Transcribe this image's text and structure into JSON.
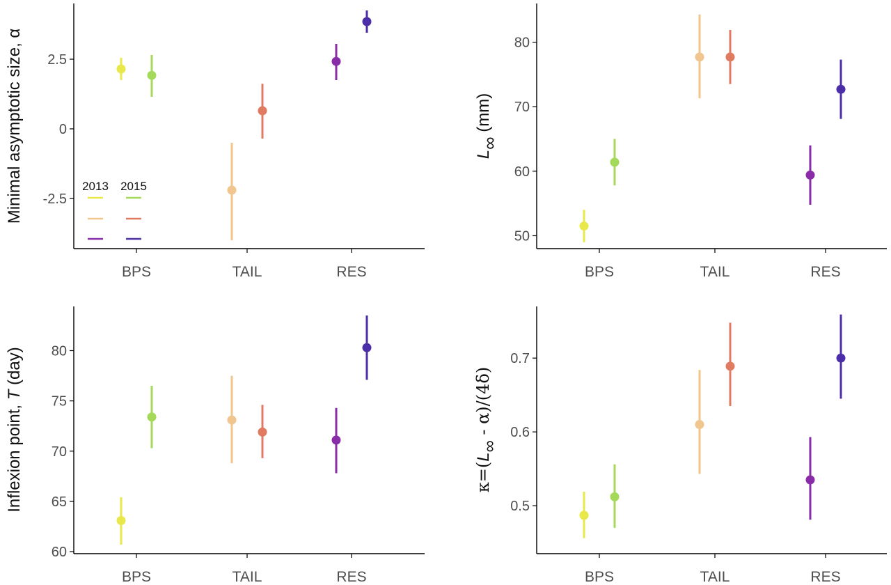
{
  "colors": {
    "BPS": {
      "2013": "#e8e84a",
      "2015": "#a5d95a"
    },
    "TAIL": {
      "2013": "#f0c58e",
      "2015": "#e07a60"
    },
    "RES": {
      "2013": "#8a2ba8",
      "2015": "#4b2ea8"
    }
  },
  "legend": {
    "headers": [
      "2013",
      "2015"
    ]
  },
  "chart_data": [
    {
      "type": "scatter",
      "panel": "top-left",
      "title": "",
      "xlabel": "",
      "ylabel": "Minimal asymptotic size, α",
      "categories": [
        "BPS",
        "TAIL",
        "RES"
      ],
      "ylim": [
        -4.3,
        4.5
      ],
      "yticks": [
        2.5,
        0,
        -2.5
      ],
      "ytick_labels": [
        "2.5",
        "0",
        "-2.5"
      ],
      "legend_position": "bottom-left",
      "series": [
        {
          "name": "2013",
          "values": [
            2.15,
            -2.2,
            2.42
          ],
          "lower": [
            1.75,
            -4.0,
            1.75
          ],
          "upper": [
            2.55,
            -0.5,
            3.05
          ]
        },
        {
          "name": "2015",
          "values": [
            1.92,
            0.65,
            3.85
          ],
          "lower": [
            1.15,
            -0.35,
            3.45
          ],
          "upper": [
            2.65,
            1.62,
            4.25
          ]
        }
      ]
    },
    {
      "type": "scatter",
      "panel": "top-right",
      "title": "",
      "xlabel": "",
      "ylabel_parts": [
        "L",
        "∞",
        " (mm)"
      ],
      "categories": [
        "BPS",
        "TAIL",
        "RES"
      ],
      "ylim": [
        48,
        86
      ],
      "yticks": [
        50,
        60,
        70,
        80
      ],
      "ytick_labels": [
        "50",
        "60",
        "70",
        "80"
      ],
      "series": [
        {
          "name": "2013",
          "values": [
            51.5,
            77.7,
            59.4
          ],
          "lower": [
            49.0,
            71.3,
            54.8
          ],
          "upper": [
            54.0,
            84.3,
            64.0
          ]
        },
        {
          "name": "2015",
          "values": [
            61.4,
            77.7,
            72.7
          ],
          "lower": [
            57.8,
            73.5,
            68.1
          ],
          "upper": [
            65.0,
            81.9,
            77.3
          ]
        }
      ]
    },
    {
      "type": "scatter",
      "panel": "bottom-left",
      "title": "",
      "xlabel": "",
      "ylabel_parts": [
        "Inflexion point, ",
        "T",
        " (day)"
      ],
      "categories": [
        "BPS",
        "TAIL",
        "RES"
      ],
      "ylim": [
        59.8,
        84.4
      ],
      "yticks": [
        60,
        65,
        70,
        75,
        80
      ],
      "ytick_labels": [
        "60",
        "65",
        "70",
        "75",
        "80"
      ],
      "series": [
        {
          "name": "2013",
          "values": [
            63.1,
            73.1,
            71.1
          ],
          "lower": [
            60.7,
            68.8,
            67.8
          ],
          "upper": [
            65.4,
            77.5,
            74.3
          ]
        },
        {
          "name": "2015",
          "values": [
            73.4,
            71.9,
            80.3
          ],
          "lower": [
            70.3,
            69.3,
            77.1
          ],
          "upper": [
            76.5,
            74.6,
            83.5
          ]
        }
      ]
    },
    {
      "type": "scatter",
      "panel": "bottom-right",
      "title": "",
      "xlabel": "",
      "ylabel_parts": [
        "κ=(",
        "L",
        "∞",
        " - α)/(4δ)"
      ],
      "categories": [
        "BPS",
        "TAIL",
        "RES"
      ],
      "ylim": [
        0.435,
        0.77
      ],
      "yticks": [
        0.5,
        0.6,
        0.7
      ],
      "ytick_labels": [
        "0.5",
        "0.6",
        "0.7"
      ],
      "series": [
        {
          "name": "2013",
          "values": [
            0.487,
            0.61,
            0.535
          ],
          "lower": [
            0.456,
            0.543,
            0.481
          ],
          "upper": [
            0.519,
            0.684,
            0.593
          ]
        },
        {
          "name": "2015",
          "values": [
            0.512,
            0.689,
            0.7
          ],
          "lower": [
            0.47,
            0.635,
            0.645
          ],
          "upper": [
            0.556,
            0.748,
            0.759
          ]
        }
      ]
    }
  ]
}
